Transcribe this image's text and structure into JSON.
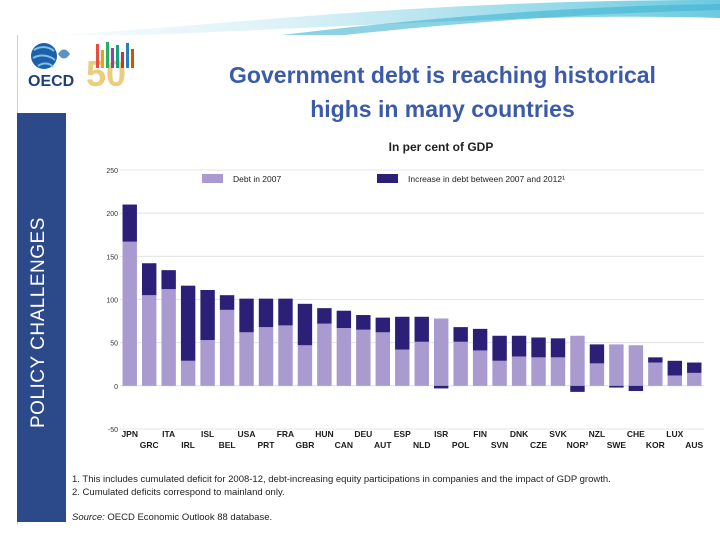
{
  "header": {
    "logo_text": "OECD",
    "logo_number": "50",
    "title_line1": "Government debt is reaching historical",
    "title_line2": "highs in many countries"
  },
  "sidebar": {
    "label": "POLICY CHALLENGES"
  },
  "colors": {
    "base": "#a99bcf",
    "increase": "#2b1f78",
    "title": "#3b5ba8",
    "sidebar": "#2c4a8a"
  },
  "chart_data": {
    "type": "bar",
    "stacked": true,
    "title": "In per cent of GDP",
    "ylim": [
      -50,
      250
    ],
    "yticks": [
      -50,
      0,
      50,
      100,
      150,
      200,
      250
    ],
    "categories": [
      "JPN",
      "GRC",
      "ITA",
      "IRL",
      "ISL",
      "BEL",
      "USA",
      "PRT",
      "FRA",
      "GBR",
      "HUN",
      "CAN",
      "DEU",
      "AUT",
      "ESP",
      "NLD",
      "ISR",
      "POL",
      "FIN",
      "SVN",
      "DNK",
      "CZE",
      "SVK",
      "NOR",
      "NZL",
      "SWE",
      "CHE",
      "KOR",
      "LUX",
      "AUS"
    ],
    "category_labels": [
      "JPN",
      "GRC",
      "ITA",
      "IRL",
      "ISL",
      "BEL",
      "USA",
      "PRT",
      "FRA",
      "GBR",
      "HUN",
      "CAN",
      "DEU",
      "AUT",
      "ESP",
      "NLD",
      "ISR",
      "POL",
      "FIN",
      "SVN",
      "DNK",
      "CZE",
      "SVK",
      "NOR²",
      "NZL",
      "SWE",
      "CHE",
      "KOR",
      "LUX",
      "AUS"
    ],
    "series": [
      {
        "name": "Debt in 2007",
        "values": [
          167,
          105,
          112,
          29,
          53,
          88,
          62,
          68,
          70,
          47,
          72,
          67,
          65,
          62,
          42,
          51,
          78,
          51,
          41,
          29,
          34,
          33,
          33,
          58,
          26,
          48,
          47,
          27,
          12,
          15
        ]
      },
      {
        "name": "Increase in debt between 2007 and 2012¹",
        "values": [
          43,
          37,
          22,
          87,
          58,
          17,
          39,
          33,
          31,
          48,
          18,
          20,
          17,
          17,
          38,
          29,
          -3,
          17,
          25,
          29,
          24,
          23,
          22,
          -7,
          22,
          -2,
          -6,
          6,
          17,
          12
        ]
      }
    ],
    "legend": [
      "Debt in 2007",
      "Increase in debt between 2007 and 2012¹"
    ]
  },
  "footnotes": [
    "1.  This includes cumulated deficit for 2008-12, debt-increasing equity participations in companies and the impact of GDP growth.",
    "2.  Cumulated deficits correspond to mainland only."
  ],
  "source": {
    "label": "Source:",
    "text": " OECD Economic Outlook 88 database."
  }
}
